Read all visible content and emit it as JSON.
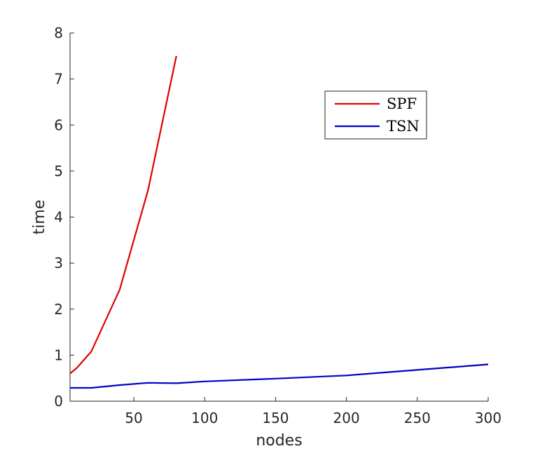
{
  "chart_data": {
    "type": "line",
    "title": "",
    "xlabel": "nodes",
    "ylabel": "time",
    "xlim": [
      5,
      300
    ],
    "ylim": [
      0,
      8
    ],
    "x_ticks": [
      50,
      100,
      150,
      200,
      250,
      300
    ],
    "y_ticks": [
      0,
      1,
      2,
      3,
      4,
      5,
      6,
      7,
      8
    ],
    "grid": false,
    "legend_position": "top-right",
    "series": [
      {
        "name": "SPF",
        "color": "#e00000",
        "points": [
          [
            5,
            0.6
          ],
          [
            10,
            0.73
          ],
          [
            20,
            1.08
          ],
          [
            40,
            2.42
          ],
          [
            60,
            4.58
          ],
          [
            80,
            7.5
          ]
        ]
      },
      {
        "name": "TSN",
        "color": "#0000cc",
        "points": [
          [
            5,
            0.29
          ],
          [
            20,
            0.29
          ],
          [
            40,
            0.35
          ],
          [
            60,
            0.4
          ],
          [
            80,
            0.39
          ],
          [
            100,
            0.43
          ],
          [
            150,
            0.49
          ],
          [
            200,
            0.56
          ],
          [
            250,
            0.68
          ],
          [
            300,
            0.8
          ]
        ]
      }
    ]
  }
}
